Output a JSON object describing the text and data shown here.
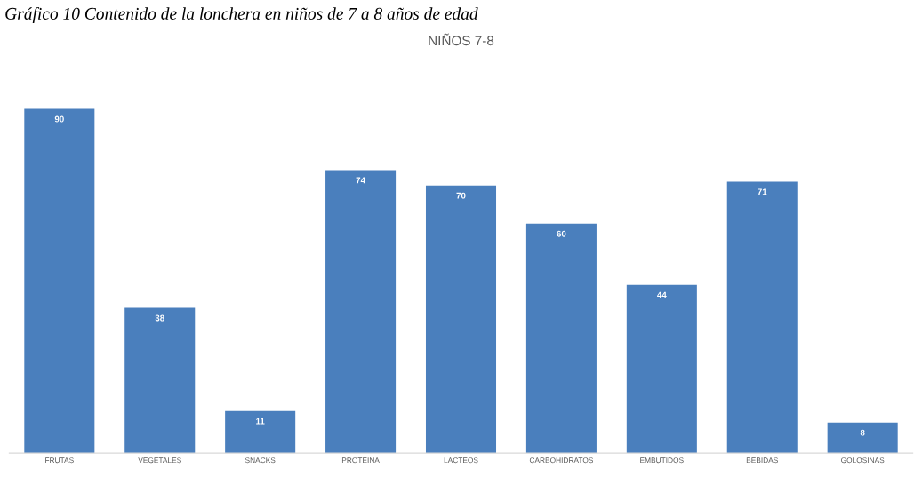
{
  "chart_data": {
    "type": "bar",
    "title": "NIÑOS 7-8",
    "annotations": [
      "Gráfico 10 Contenido de la lonchera en niños de 7 a 8 años de edad"
    ],
    "categories": [
      "FRUTAS",
      "VEGETALES",
      "SNACKS",
      "PROTEINA",
      "LACTEOS",
      "CARBOHIDRATOS",
      "EMBUTIDOS",
      "BEBIDAS",
      "GOLOSINAS"
    ],
    "values": [
      90,
      38,
      11,
      74,
      70,
      60,
      44,
      71,
      8
    ],
    "color": "#4a7fbd",
    "data_labels": true,
    "grid": false,
    "legend": false
  }
}
